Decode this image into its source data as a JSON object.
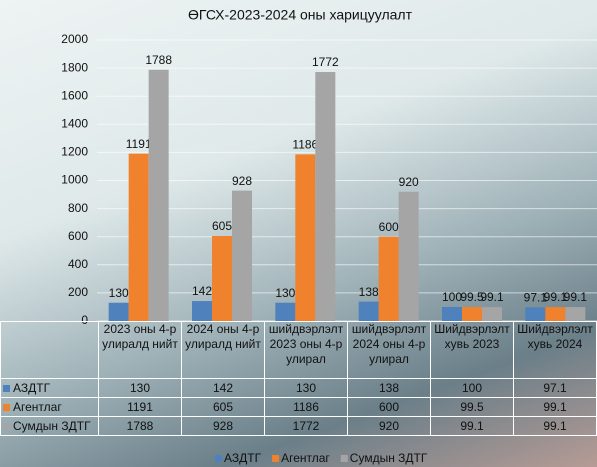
{
  "chart_data": {
    "type": "bar",
    "title": "ӨГСХ-2023-2024 оны харицуулалт",
    "categories": [
      "2023 оны 4-р улиралд нийт",
      "2024 оны 4-р улиралд нийт",
      "шийдвэрлэлт 2023 оны 4-р улирал",
      "шийдвэрлэлт 2024 оны 4-р улирал",
      "Шийдвэрлэлт хувь 2023",
      "Шийдвэрлэлт хувь 2024"
    ],
    "series": [
      {
        "name": "АЗДТГ",
        "color": "#4f81bd",
        "values": [
          130,
          142,
          130,
          138,
          100,
          97.1
        ]
      },
      {
        "name": "Агентлаг",
        "color": "#f0822d",
        "values": [
          1191,
          605,
          1186,
          600,
          99.5,
          99.1
        ]
      },
      {
        "name": "Сумдын ЗДТГ",
        "color": "#a5a5a5",
        "values": [
          1788,
          928,
          1772,
          920,
          99.1,
          99.1
        ]
      }
    ],
    "ylim": [
      0,
      2000
    ],
    "yticks": [
      0,
      200,
      400,
      600,
      800,
      1000,
      1200,
      1400,
      1600,
      1800,
      2000
    ],
    "grid": true,
    "legend": "bottom"
  }
}
